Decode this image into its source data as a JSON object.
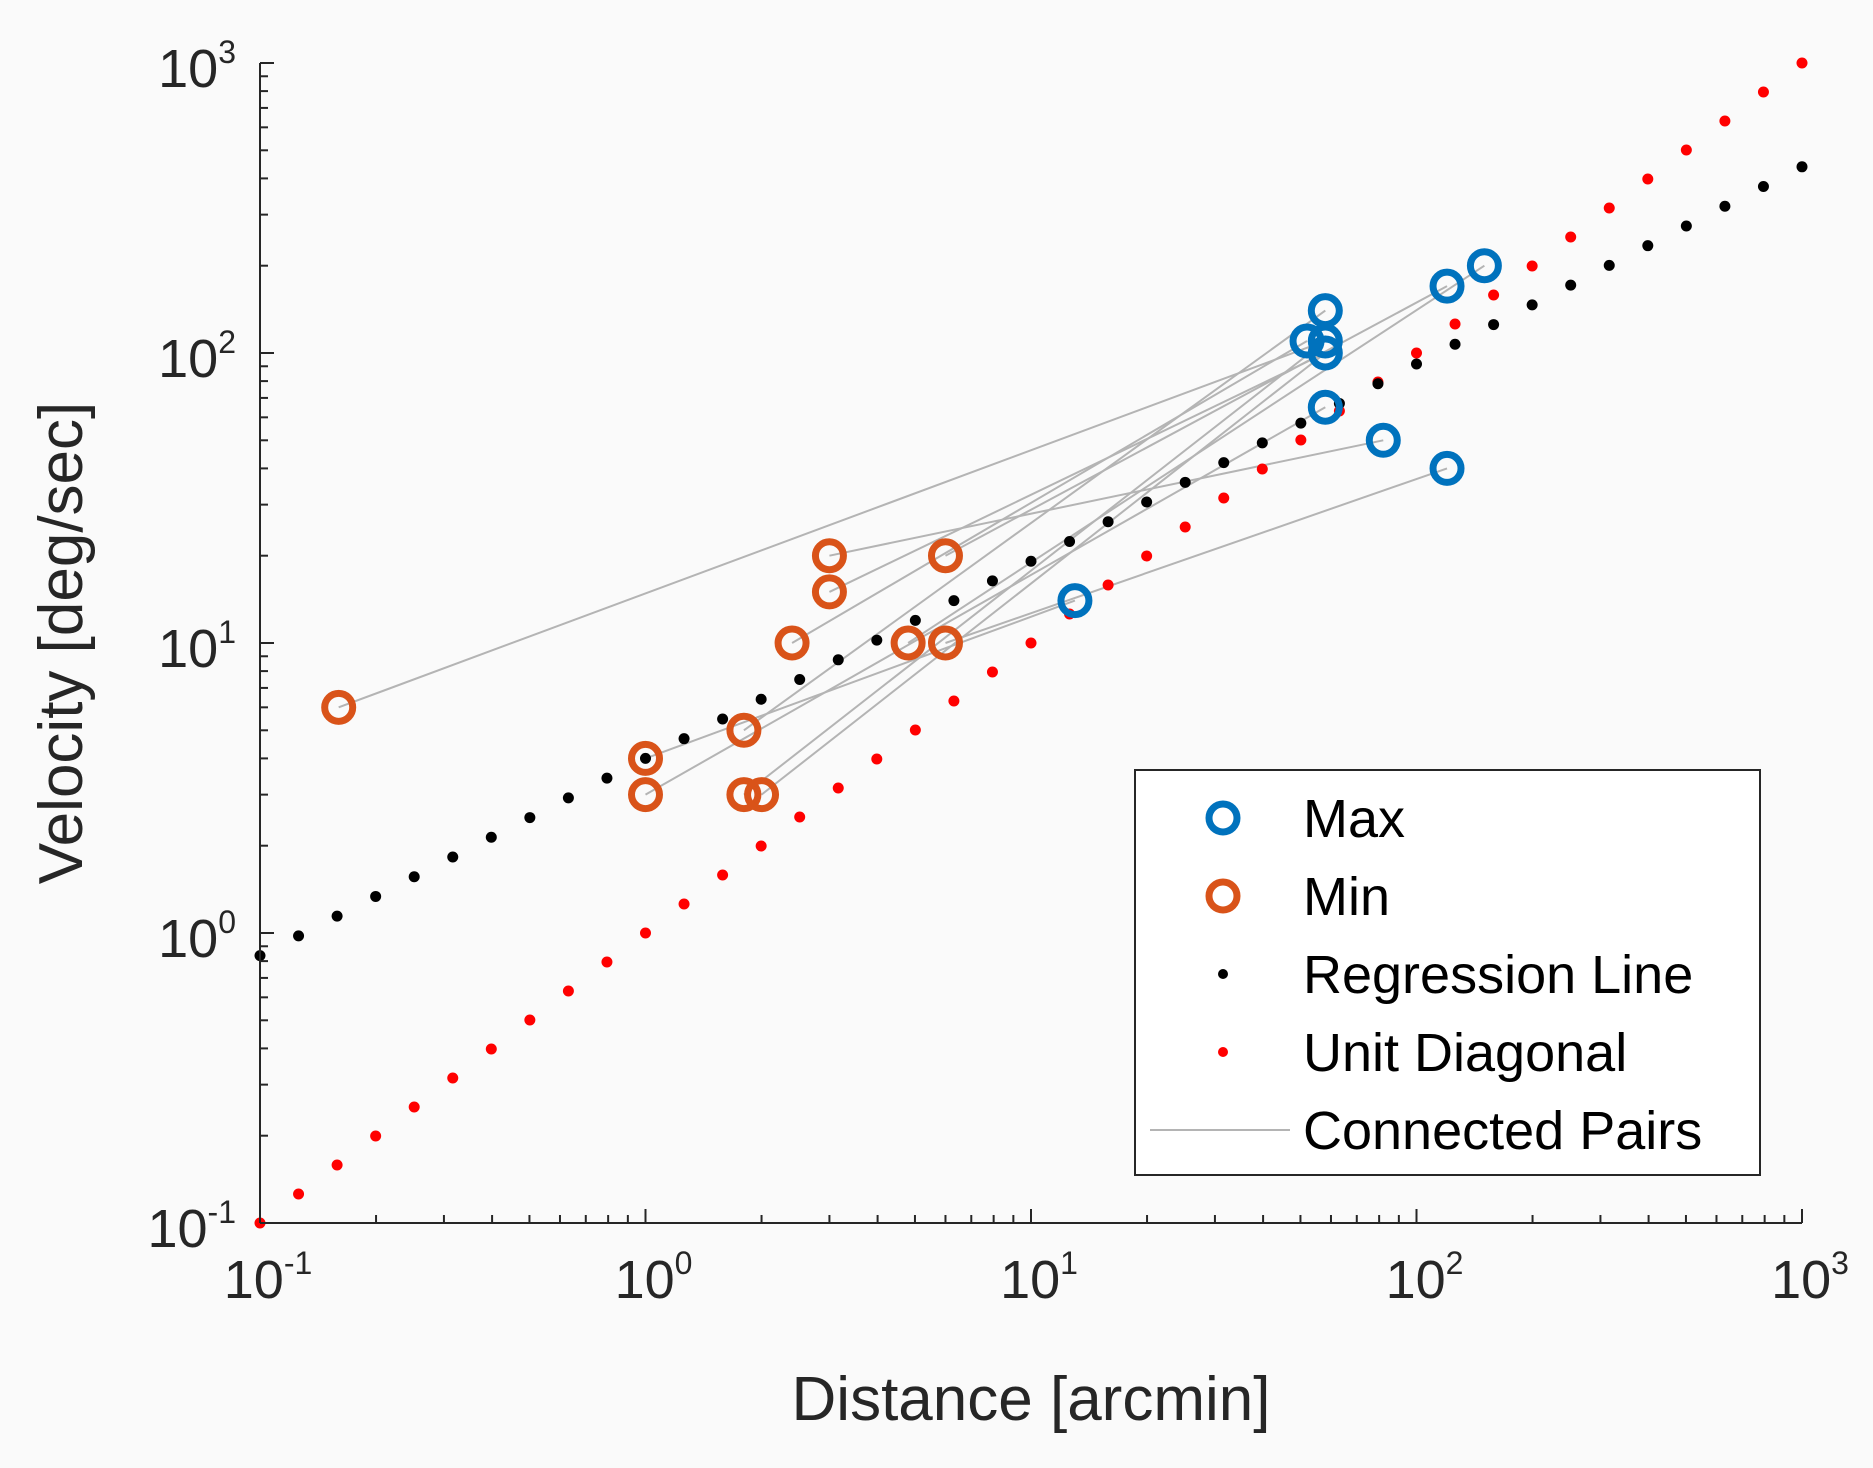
{
  "chart_data": {
    "type": "scatter",
    "xscale": "log",
    "yscale": "log",
    "xlabel": "Distance [arcmin]",
    "ylabel": "Velocity [deg/sec]",
    "xlim": [
      0.1,
      1000
    ],
    "ylim": [
      0.1,
      1000
    ],
    "xticks": [
      {
        "base": "10",
        "exp": "-1"
      },
      {
        "base": "10",
        "exp": "0"
      },
      {
        "base": "10",
        "exp": "1"
      },
      {
        "base": "10",
        "exp": "2"
      },
      {
        "base": "10",
        "exp": "3"
      }
    ],
    "yticks": [
      {
        "base": "10",
        "exp": "-1"
      },
      {
        "base": "10",
        "exp": "0"
      },
      {
        "base": "10",
        "exp": "1"
      },
      {
        "base": "10",
        "exp": "2"
      },
      {
        "base": "10",
        "exp": "3"
      }
    ],
    "colors": {
      "max": "#0072bd",
      "min": "#d95319",
      "regression": "#000000",
      "unit_diagonal": "#ff0000",
      "pairs": "#b4b4b4",
      "axes": "#262626"
    },
    "legend": {
      "position": "bottom-right",
      "entries": [
        {
          "label": "Max",
          "marker": "circle-open",
          "series": "max"
        },
        {
          "label": "Min",
          "marker": "circle-open",
          "series": "min"
        },
        {
          "label": "Regression Line",
          "marker": "dot",
          "series": "regression"
        },
        {
          "label": "Unit Diagonal",
          "marker": "dot",
          "series": "unit_diagonal"
        },
        {
          "label": "Connected Pairs",
          "marker": "line",
          "series": "pairs"
        }
      ]
    },
    "series": [
      {
        "name": "Max",
        "points": [
          {
            "x": 13,
            "y": 14
          },
          {
            "x": 52,
            "y": 110
          },
          {
            "x": 58,
            "y": 140
          },
          {
            "x": 58,
            "y": 110
          },
          {
            "x": 58,
            "y": 100
          },
          {
            "x": 58,
            "y": 65
          },
          {
            "x": 82,
            "y": 50
          },
          {
            "x": 120,
            "y": 40
          },
          {
            "x": 120,
            "y": 170
          },
          {
            "x": 150,
            "y": 200
          }
        ]
      },
      {
        "name": "Min",
        "points": [
          {
            "x": 0.16,
            "y": 6
          },
          {
            "x": 1,
            "y": 4
          },
          {
            "x": 1,
            "y": 3
          },
          {
            "x": 1.8,
            "y": 5
          },
          {
            "x": 1.8,
            "y": 3
          },
          {
            "x": 2,
            "y": 3
          },
          {
            "x": 2.4,
            "y": 10
          },
          {
            "x": 3,
            "y": 20
          },
          {
            "x": 3,
            "y": 15
          },
          {
            "x": 4.8,
            "y": 10
          },
          {
            "x": 6,
            "y": 10
          },
          {
            "x": 6,
            "y": 20
          }
        ]
      }
    ],
    "pairs": [
      {
        "from": [
          0.16,
          6
        ],
        "to": [
          58,
          110
        ]
      },
      {
        "from": [
          3,
          15
        ],
        "to": [
          58,
          100
        ]
      },
      {
        "from": [
          3,
          20
        ],
        "to": [
          82,
          50
        ]
      },
      {
        "from": [
          2.4,
          10
        ],
        "to": [
          52,
          110
        ]
      },
      {
        "from": [
          1.8,
          5
        ],
        "to": [
          58,
          140
        ]
      },
      {
        "from": [
          6,
          20
        ],
        "to": [
          120,
          170
        ]
      },
      {
        "from": [
          1,
          3
        ],
        "to": [
          58,
          65
        ]
      },
      {
        "from": [
          1.8,
          3
        ],
        "to": [
          58,
          110
        ]
      },
      {
        "from": [
          2,
          3
        ],
        "to": [
          58,
          100
        ]
      },
      {
        "from": [
          4.8,
          10
        ],
        "to": [
          150,
          200
        ]
      },
      {
        "from": [
          6,
          10
        ],
        "to": [
          120,
          40
        ]
      },
      {
        "from": [
          1,
          4
        ],
        "to": [
          13,
          14
        ]
      }
    ],
    "regression_line": {
      "a": 4.0,
      "b": 0.68,
      "x_start": 0.1,
      "x_end": 1000,
      "points": 40
    },
    "unit_diagonal": {
      "x_start": 0.1,
      "x_end": 1000,
      "points": 40
    }
  }
}
